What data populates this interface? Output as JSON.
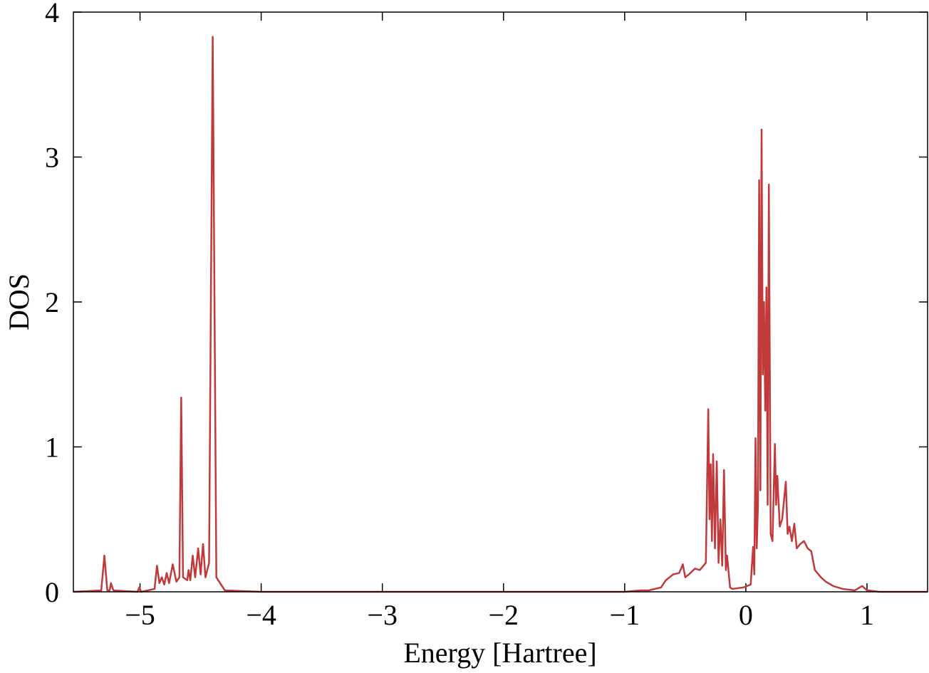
{
  "chart_data": {
    "type": "line",
    "xlabel": "Energy [Hartree]",
    "ylabel": "DOS",
    "xlim": [
      -5.55,
      1.5
    ],
    "ylim": [
      0,
      4
    ],
    "xticks": [
      {
        "value": -5,
        "label": "−5"
      },
      {
        "value": -4,
        "label": "−4"
      },
      {
        "value": -3,
        "label": "−3"
      },
      {
        "value": -2,
        "label": "−2"
      },
      {
        "value": -1,
        "label": "−1"
      },
      0,
      1
    ],
    "yticks": [
      0,
      1,
      2,
      3,
      4
    ],
    "grid": false,
    "series": [
      {
        "color": "#c0393b",
        "x": [
          -5.55,
          -5.32,
          -5.294,
          -5.27,
          -5.25,
          -5.24,
          -5.22,
          -5.02,
          -5.006,
          -4.99,
          -4.88,
          -4.86,
          -4.84,
          -4.82,
          -4.8,
          -4.78,
          -4.76,
          -4.73,
          -4.7,
          -4.675,
          -4.66,
          -4.645,
          -4.61,
          -4.6,
          -4.585,
          -4.565,
          -4.545,
          -4.52,
          -4.5,
          -4.48,
          -4.46,
          -4.43,
          -4.4,
          -4.37,
          -4.3,
          -4.0,
          -1.0,
          -0.87,
          -0.8,
          -0.7,
          -0.66,
          -0.6,
          -0.55,
          -0.52,
          -0.5,
          -0.47,
          -0.42,
          -0.38,
          -0.33,
          -0.31,
          -0.3,
          -0.29,
          -0.28,
          -0.27,
          -0.255,
          -0.24,
          -0.225,
          -0.21,
          -0.195,
          -0.18,
          -0.165,
          -0.155,
          -0.13,
          -0.11,
          -0.02,
          0.04,
          0.06,
          0.07,
          0.08,
          0.09,
          0.1,
          0.11,
          0.12,
          0.13,
          0.14,
          0.15,
          0.16,
          0.17,
          0.18,
          0.19,
          0.205,
          0.22,
          0.24,
          0.25,
          0.26,
          0.28,
          0.3,
          0.33,
          0.345,
          0.36,
          0.38,
          0.4,
          0.42,
          0.45,
          0.48,
          0.51,
          0.54,
          0.57,
          0.62,
          0.66,
          0.72,
          0.8,
          0.9,
          0.96,
          1.0,
          1.01,
          1.1,
          1.5
        ],
        "values": [
          0,
          0.01,
          0.25,
          0.01,
          0.01,
          0.06,
          0.01,
          0,
          0.03,
          0,
          0.02,
          0.18,
          0.06,
          0.1,
          0.05,
          0.13,
          0.06,
          0.19,
          0.07,
          0.1,
          1.34,
          0.1,
          0.08,
          0.15,
          0.08,
          0.25,
          0.1,
          0.3,
          0.12,
          0.33,
          0.1,
          0.2,
          3.83,
          0.1,
          0.01,
          0,
          0,
          0.01,
          0.01,
          0.03,
          0.08,
          0.12,
          0.13,
          0.19,
          0.1,
          0.12,
          0.16,
          0.15,
          0.2,
          1.26,
          0.5,
          0.88,
          0.35,
          0.95,
          0.3,
          0.9,
          0.2,
          0.5,
          0.18,
          0.84,
          0.15,
          0.25,
          0.03,
          0.02,
          0.03,
          0.05,
          0.31,
          0.12,
          1.06,
          0.3,
          0.6,
          2.84,
          0.7,
          3.19,
          1.5,
          2.0,
          1.25,
          2.1,
          0.6,
          2.81,
          0.4,
          0.35,
          1.02,
          0.6,
          0.8,
          0.45,
          0.5,
          0.76,
          0.4,
          0.45,
          0.35,
          0.47,
          0.3,
          0.33,
          0.35,
          0.3,
          0.28,
          0.15,
          0.1,
          0.07,
          0.04,
          0.02,
          0.01,
          0.04,
          0.01,
          0.01,
          0,
          0
        ]
      }
    ]
  }
}
